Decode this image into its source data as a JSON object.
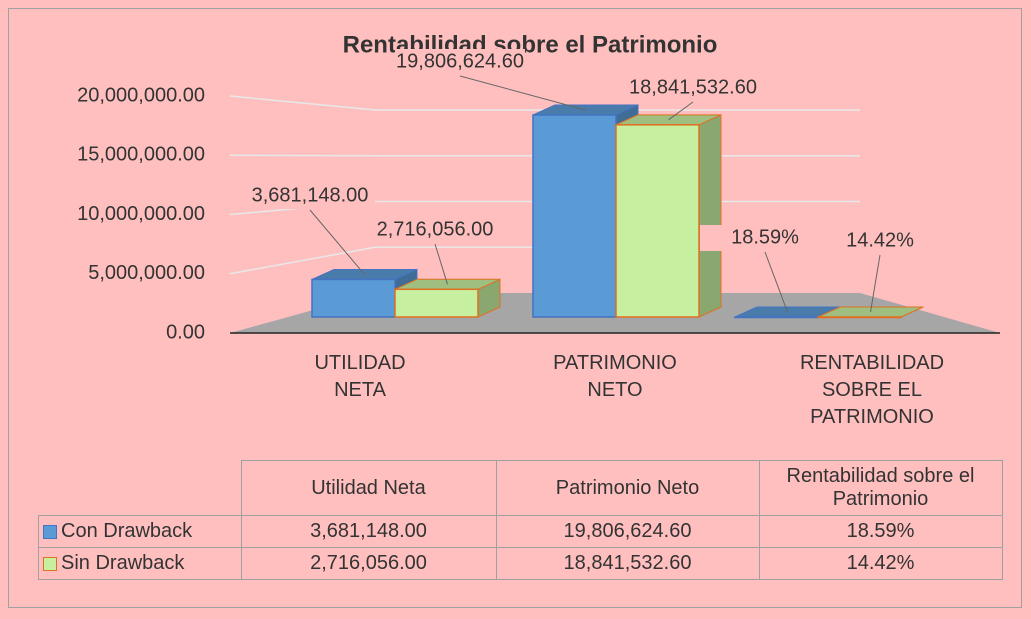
{
  "chart_data": {
    "type": "bar3d",
    "title": "Rentabilidad sobre el Patrimonio",
    "categories": [
      "UTILIDAD NETA",
      "PATRIMONIO NETO",
      "RENTABILIDAD SOBRE EL PATRIMONIO"
    ],
    "series": [
      {
        "name": "Con Drawback",
        "color": "#5b9bd5",
        "values": [
          3681148,
          19806624.6,
          18.59
        ],
        "value_labels": [
          "3,681,148.00",
          "19,806,624.60",
          "18.59%"
        ]
      },
      {
        "name": "Sin Drawback",
        "color": "#c6efa0",
        "values": [
          2716056,
          18841532.6,
          14.42
        ],
        "value_labels": [
          "2,716,056.00",
          "18,841,532.60",
          "14.42%"
        ]
      }
    ],
    "ylim": [
      0,
      20000000
    ],
    "yticks": [
      {
        "value": 0,
        "label": "0.00"
      },
      {
        "value": 5000000,
        "label": "5,000,000.00"
      },
      {
        "value": 10000000,
        "label": "10,000,000.00"
      },
      {
        "value": 15000000,
        "label": "15,000,000.00"
      },
      {
        "value": 20000000,
        "label": "20,000,000.00"
      }
    ],
    "grid": true,
    "table_header": [
      "Utilidad Neta",
      "Patrimonio Neto",
      "Rentabilidad sobre el Patrimonio"
    ]
  }
}
